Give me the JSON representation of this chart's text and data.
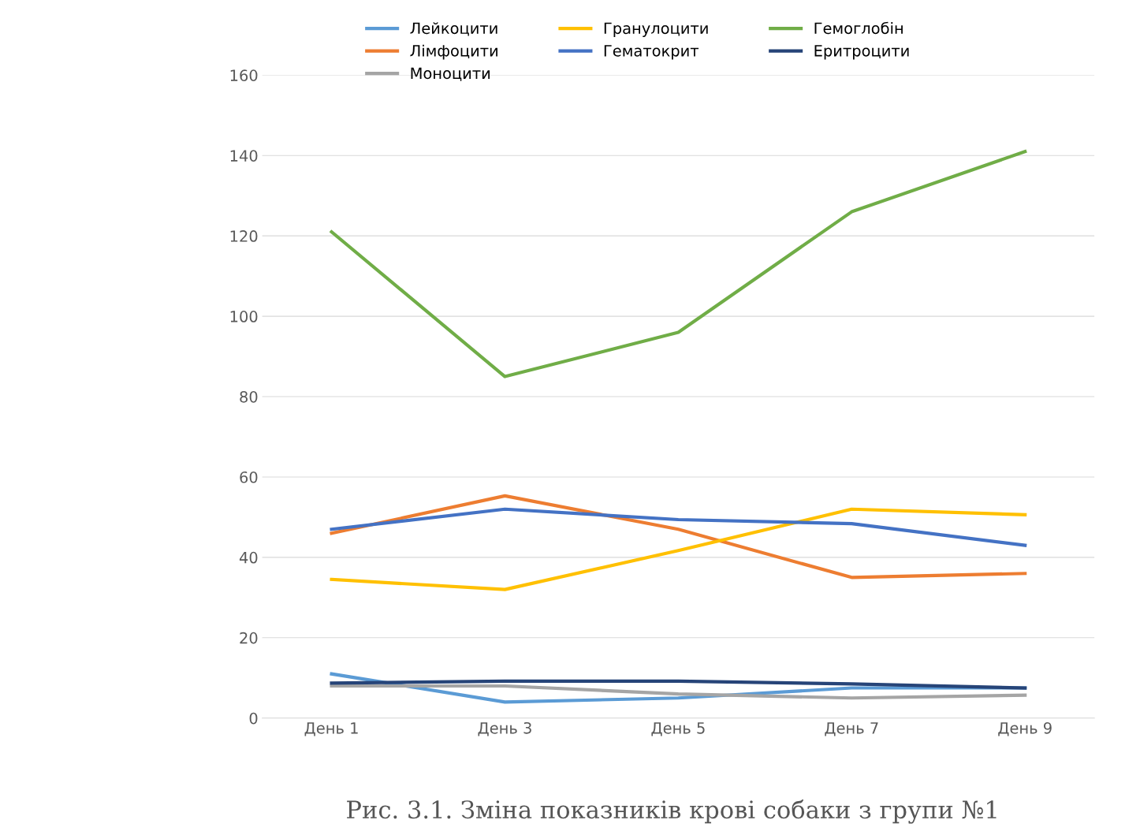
{
  "chart_data": {
    "type": "line",
    "categories": [
      "День 1",
      "День 3",
      "День 5",
      "День 7",
      "День 9"
    ],
    "series": [
      {
        "name": "Лейкоцити",
        "color": "#5b9bd5",
        "values": [
          11,
          4,
          5,
          7.5,
          7.5
        ]
      },
      {
        "name": "Лімфоцити",
        "color": "#ed7d31",
        "values": [
          46,
          55.3,
          47,
          35,
          36
        ]
      },
      {
        "name": "Моноцити",
        "color": "#a5a5a5",
        "values": [
          8,
          8,
          6,
          5,
          5.7
        ]
      },
      {
        "name": "Гранулоцити",
        "color": "#ffc000",
        "values": [
          34.5,
          32,
          41.7,
          52,
          50.6
        ]
      },
      {
        "name": "Гематокрит",
        "color": "#4472c4",
        "values": [
          47,
          52,
          49.4,
          48.4,
          43
        ]
      },
      {
        "name": "Гемоглобін",
        "color": "#70ad47",
        "values": [
          121,
          85,
          96,
          126,
          141
        ]
      },
      {
        "name": "Еритроцити",
        "color": "#264478",
        "values": [
          8.7,
          9.2,
          9.2,
          8.5,
          7.5
        ]
      }
    ],
    "ylim": [
      0,
      160
    ],
    "yticks": [
      0,
      20,
      40,
      60,
      80,
      100,
      120,
      140,
      160
    ],
    "grid": "y",
    "legend": "top",
    "marker": "none",
    "line_style": "solid",
    "annotations": [
      "Рис. 3.1. Зміна показників крові собаки з групи №1"
    ]
  }
}
